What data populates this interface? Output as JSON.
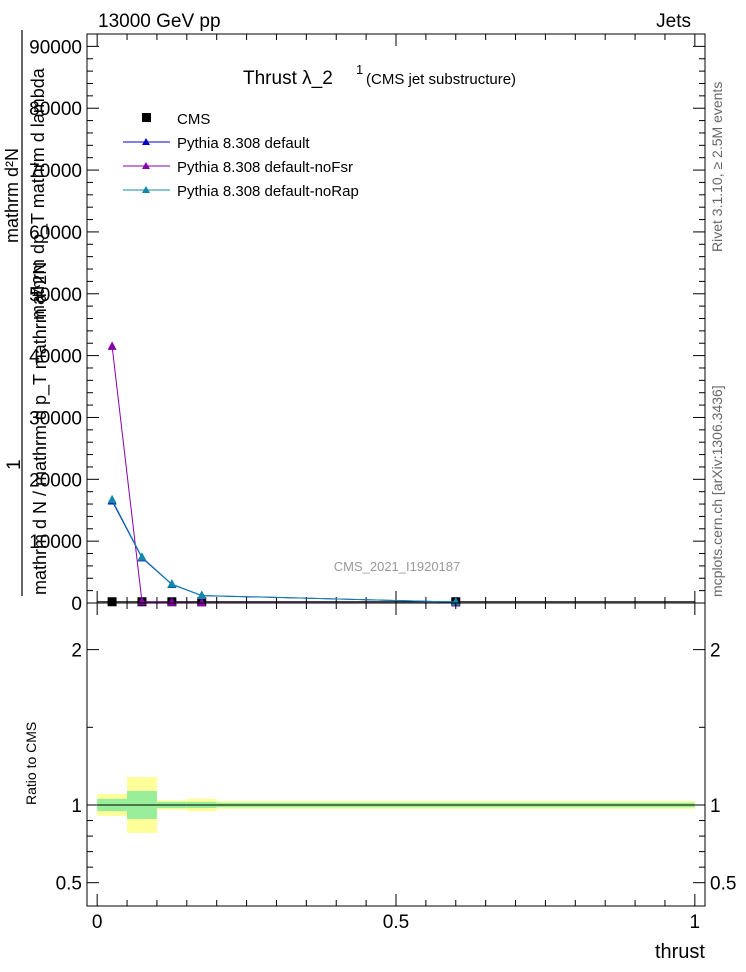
{
  "header": {
    "left": "13000 GeV pp",
    "right": "Jets"
  },
  "side_labels": {
    "rivet": "Rivet 3.1.10, ≥ 2.5M events",
    "mcplots": "mcplots.cern.ch [arXiv:1306.3436]"
  },
  "chart_data": [
    {
      "type": "line",
      "title_main": "Thrust  λ_2",
      "title_sup": "1",
      "title_note": "(CMS jet substructure)",
      "watermark": "CMS_2021_I1920187",
      "ylabel_numerator": "1",
      "ylabel_denominator": "mathrm d N / mathrm d p_T mathrm d^2N",
      "ylabel_line1": "mathrm d²N",
      "ylabel_line2": "mathrm dp_T mathrm d lambda",
      "ylim": [
        0,
        92000
      ],
      "yticks": [
        0,
        10000,
        20000,
        30000,
        40000,
        50000,
        60000,
        70000,
        80000,
        90000
      ],
      "ytick_labels": [
        "0",
        "10000",
        "20000",
        "30000",
        "40000",
        "50000",
        "60000",
        "70000",
        "80000",
        "90000"
      ],
      "xlim": [
        -0.017,
        1.017
      ],
      "legend_position": "top-left",
      "series": [
        {
          "name": "CMS",
          "color": "#000000",
          "marker": "square",
          "x": [
            0.025,
            0.075,
            0.125,
            0.175,
            0.6
          ],
          "y": [
            200,
            200,
            200,
            200,
            200
          ],
          "xerr": [
            [
              0.0,
              0.05
            ],
            [
              0.05,
              0.1
            ],
            [
              0.1,
              0.15
            ],
            [
              0.15,
              0.2
            ],
            [
              0.2,
              1.0
            ]
          ]
        },
        {
          "name": "Pythia 8.308 default",
          "color": "#0000cc",
          "marker": "triangle",
          "x": [
            0.025,
            0.075,
            0.125,
            0.175,
            0.6
          ],
          "y": [
            16500,
            7300,
            3000,
            1200,
            150
          ]
        },
        {
          "name": "Pythia 8.308 default-noFsr",
          "color": "#8800aa",
          "marker": "triangle",
          "x": [
            0.025,
            0.075,
            0.125,
            0.175,
            0.6
          ],
          "y": [
            41500,
            200,
            100,
            50,
            10
          ]
        },
        {
          "name": "Pythia 8.308 default-noRap",
          "color": "#1188aa",
          "marker": "triangle",
          "x": [
            0.025,
            0.075,
            0.125,
            0.175,
            0.6
          ],
          "y": [
            16700,
            7400,
            3050,
            1220,
            160
          ]
        }
      ]
    },
    {
      "type": "area",
      "ylabel": "Ratio to CMS",
      "xlabel": "thrust",
      "ylim": [
        0.35,
        2.3
      ],
      "yticks": [
        0.5,
        1,
        2
      ],
      "ytick_labels": [
        "0.5",
        "1",
        "2"
      ],
      "xticks": [
        0,
        0.5,
        1
      ],
      "xtick_labels": [
        "0",
        "0.5",
        "1"
      ],
      "xlim": [
        -0.017,
        1.017
      ],
      "bands": [
        {
          "x0": 0.0,
          "x1": 0.05,
          "inner": [
            0.96,
            1.04
          ],
          "outer": [
            0.93,
            1.07
          ]
        },
        {
          "x0": 0.05,
          "x1": 0.1,
          "inner": [
            0.91,
            1.09
          ],
          "outer": [
            0.82,
            1.18
          ]
        },
        {
          "x0": 0.1,
          "x1": 0.15,
          "inner": [
            0.98,
            1.02
          ],
          "outer": [
            0.97,
            1.03
          ]
        },
        {
          "x0": 0.15,
          "x1": 0.2,
          "inner": [
            0.98,
            1.02
          ],
          "outer": [
            0.96,
            1.04
          ]
        },
        {
          "x0": 0.2,
          "x1": 1.0,
          "inner": [
            0.985,
            1.015
          ],
          "outer": [
            0.975,
            1.025
          ]
        }
      ],
      "colors": {
        "inner": "#99ee99",
        "outer": "#ffff99"
      }
    }
  ]
}
